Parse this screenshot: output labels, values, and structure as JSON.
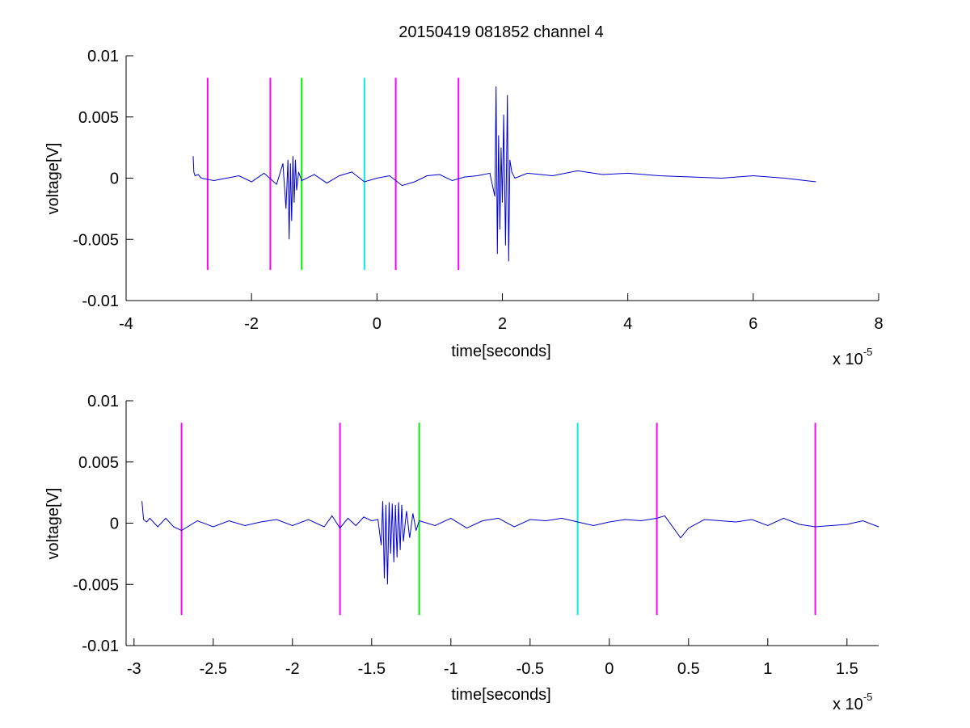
{
  "figure": {
    "title": "20150419 081852 channel 4"
  },
  "chart_data": [
    {
      "type": "line",
      "xlabel": "time[seconds]",
      "ylabel": "voltage[V]",
      "x_exponent": "x 10",
      "x_exponent_power": "-5",
      "xlim": [
        -4,
        8
      ],
      "ylim": [
        -0.01,
        0.01
      ],
      "x_ticks": [
        -4,
        -2,
        0,
        2,
        4,
        6,
        8
      ],
      "x_tick_labels": [
        "-4",
        "-2",
        "0",
        "2",
        "4",
        "6",
        "8"
      ],
      "y_ticks": [
        -0.01,
        -0.005,
        0,
        0.005,
        0.01
      ],
      "y_tick_labels": [
        "-0.01",
        "-0.005",
        "0",
        "0.005",
        "0.01"
      ],
      "grid": false,
      "signal": {
        "color": "#0000cc",
        "x": [
          -2.93,
          -2.92,
          -2.9,
          -2.85,
          -2.8,
          -2.6,
          -2.4,
          -2.2,
          -2.0,
          -1.8,
          -1.6,
          -1.5,
          -1.45,
          -1.42,
          -1.4,
          -1.38,
          -1.36,
          -1.34,
          -1.32,
          -1.3,
          -1.28,
          -1.25,
          -1.2,
          -1.0,
          -0.8,
          -0.6,
          -0.4,
          -0.2,
          0.0,
          0.2,
          0.4,
          0.6,
          0.8,
          1.0,
          1.2,
          1.4,
          1.6,
          1.8,
          1.88,
          1.9,
          1.92,
          1.94,
          1.96,
          1.98,
          2.0,
          2.02,
          2.05,
          2.08,
          2.1,
          2.12,
          2.15,
          2.2,
          2.4,
          2.8,
          3.2,
          3.6,
          4.0,
          4.5,
          5.0,
          5.5,
          6.0,
          6.5,
          7.0
        ],
        "y": [
          0.0018,
          0.0005,
          0.0002,
          0.0003,
          0.0,
          -0.0002,
          0.0,
          0.0002,
          -0.0003,
          0.0004,
          -0.0005,
          0.0012,
          -0.0025,
          0.0015,
          -0.005,
          0.0012,
          -0.0035,
          0.0018,
          -0.002,
          0.0015,
          -0.001,
          0.0005,
          -0.0002,
          0.0003,
          -0.0004,
          0.0002,
          0.0005,
          -0.0003,
          0.0,
          0.0002,
          -0.0006,
          -0.0003,
          0.0002,
          0.0003,
          -0.0002,
          0.0001,
          0.0002,
          0.0004,
          -0.0015,
          0.0075,
          -0.0062,
          0.0035,
          -0.0042,
          0.0025,
          -0.002,
          0.0052,
          -0.0055,
          0.0068,
          -0.0068,
          0.0015,
          0.0005,
          0.0,
          0.0004,
          0.0002,
          0.0006,
          0.0003,
          0.0004,
          0.0002,
          0.0001,
          0.0,
          0.0002,
          0.0,
          -0.0003
        ]
      },
      "markers": [
        {
          "x": -2.7,
          "color": "#ff00ff"
        },
        {
          "x": -1.7,
          "color": "#ff00ff"
        },
        {
          "x": -1.2,
          "color": "#00ee00"
        },
        {
          "x": -0.2,
          "color": "#00eeee"
        },
        {
          "x": 0.3,
          "color": "#ff00ff"
        },
        {
          "x": 1.3,
          "color": "#ff00ff"
        }
      ],
      "marker_ylim": [
        -0.0075,
        0.0082
      ]
    },
    {
      "type": "line",
      "xlabel": "time[seconds]",
      "ylabel": "voltage[V]",
      "x_exponent": "x 10",
      "x_exponent_power": "-5",
      "xlim": [
        -3.05,
        1.7
      ],
      "ylim": [
        -0.01,
        0.01
      ],
      "x_ticks": [
        -3,
        -2.5,
        -2,
        -1.5,
        -1,
        -0.5,
        0,
        0.5,
        1,
        1.5
      ],
      "x_tick_labels": [
        "-3",
        "-2.5",
        "-2",
        "-1.5",
        "-1",
        "-0.5",
        "0",
        "0.5",
        "1",
        "1.5"
      ],
      "y_ticks": [
        -0.01,
        -0.005,
        0,
        0.005,
        0.01
      ],
      "y_tick_labels": [
        "-0.01",
        "-0.005",
        "0",
        "0.005",
        "0.01"
      ],
      "grid": false,
      "signal": {
        "color": "#0000cc",
        "x": [
          -2.95,
          -2.94,
          -2.92,
          -2.9,
          -2.85,
          -2.8,
          -2.75,
          -2.7,
          -2.6,
          -2.5,
          -2.4,
          -2.3,
          -2.2,
          -2.1,
          -2.0,
          -1.9,
          -1.8,
          -1.75,
          -1.7,
          -1.65,
          -1.6,
          -1.55,
          -1.5,
          -1.46,
          -1.44,
          -1.43,
          -1.42,
          -1.41,
          -1.4,
          -1.39,
          -1.38,
          -1.37,
          -1.36,
          -1.35,
          -1.34,
          -1.33,
          -1.32,
          -1.31,
          -1.3,
          -1.28,
          -1.26,
          -1.24,
          -1.22,
          -1.2,
          -1.1,
          -1.0,
          -0.9,
          -0.8,
          -0.7,
          -0.6,
          -0.5,
          -0.4,
          -0.3,
          -0.2,
          -0.1,
          0.0,
          0.1,
          0.2,
          0.3,
          0.35,
          0.4,
          0.45,
          0.5,
          0.6,
          0.7,
          0.8,
          0.9,
          1.0,
          1.1,
          1.2,
          1.3,
          1.4,
          1.5,
          1.6,
          1.7
        ],
        "y": [
          0.0018,
          0.0003,
          0.0001,
          0.0004,
          -0.0003,
          0.0004,
          -0.0003,
          -0.0006,
          0.0002,
          -0.0003,
          0.0002,
          -0.0002,
          0.0001,
          0.0003,
          -0.0002,
          0.0003,
          -0.0003,
          0.0006,
          -0.0004,
          0.0004,
          -0.0002,
          0.0005,
          0.0002,
          0.0003,
          -0.0018,
          0.0018,
          -0.0045,
          0.0015,
          -0.005,
          0.0017,
          -0.0025,
          0.0016,
          -0.0032,
          0.0015,
          -0.0028,
          0.0017,
          -0.0022,
          0.0015,
          -0.0015,
          0.001,
          -0.0012,
          0.0008,
          -0.0006,
          0.0002,
          -0.0002,
          0.0004,
          -0.0004,
          0.0002,
          0.0004,
          -0.0003,
          0.0003,
          0.0002,
          0.0004,
          0.0001,
          -0.0002,
          0.0001,
          0.0003,
          0.0002,
          0.0004,
          0.0006,
          -0.0003,
          -0.0012,
          -0.0004,
          0.0003,
          0.0002,
          0.0001,
          0.0003,
          -0.0002,
          0.0004,
          -0.0001,
          -0.0003,
          -0.0002,
          -0.0001,
          0.0002,
          -0.0003
        ]
      },
      "markers": [
        {
          "x": -2.7,
          "color": "#ff00ff"
        },
        {
          "x": -1.7,
          "color": "#ff00ff"
        },
        {
          "x": -1.2,
          "color": "#00ee00"
        },
        {
          "x": -0.2,
          "color": "#00eeee"
        },
        {
          "x": 0.3,
          "color": "#ff00ff"
        },
        {
          "x": 1.3,
          "color": "#ff00ff"
        }
      ],
      "marker_ylim": [
        -0.0075,
        0.0082
      ]
    }
  ]
}
